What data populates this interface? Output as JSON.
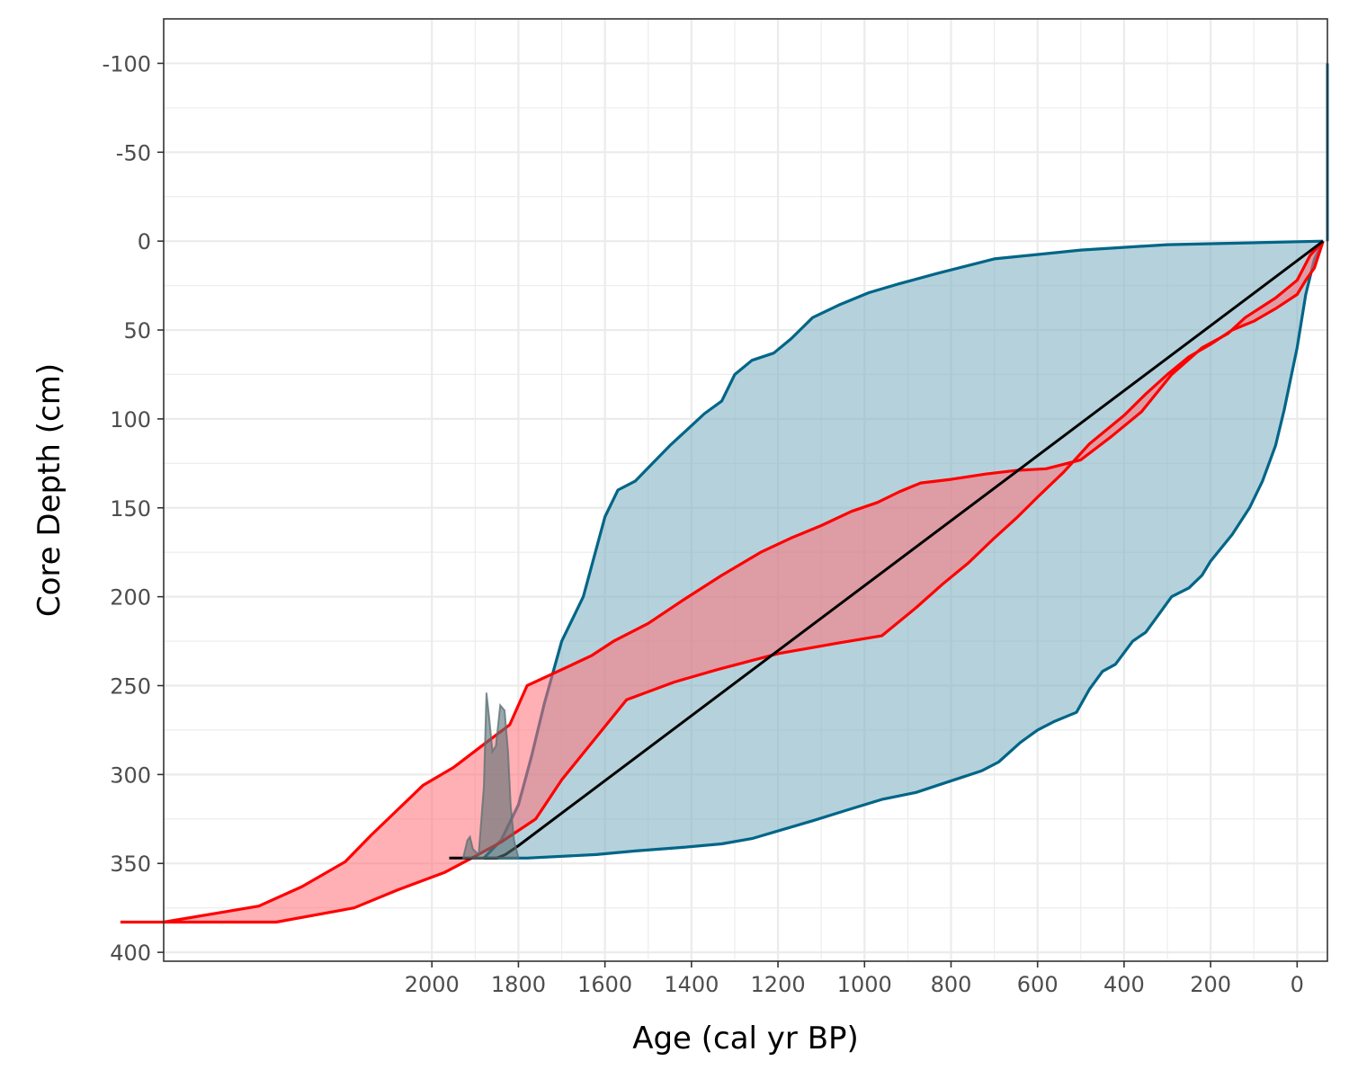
{
  "chart_data": {
    "type": "area",
    "xlabel": "Age (cal yr BP)",
    "ylabel": "Core Depth (cm)",
    "x_reversed": true,
    "y_reversed": true,
    "xlim": [
      2620,
      -70
    ],
    "ylim": [
      -125,
      405
    ],
    "x_ticks": [
      2000,
      1800,
      1600,
      1400,
      1200,
      1000,
      800,
      600,
      400,
      200,
      0
    ],
    "x_tick_labels": [
      "2000",
      "1800",
      "1600",
      "1400",
      "1200",
      "1000",
      "800",
      "600",
      "400",
      "200",
      "0"
    ],
    "y_ticks": [
      -100,
      -50,
      0,
      50,
      100,
      150,
      200,
      250,
      300,
      350,
      400
    ],
    "y_tick_labels": [
      "-100",
      "-50",
      "0",
      "50",
      "100",
      "150",
      "200",
      "250",
      "300",
      "350",
      "400"
    ],
    "grid": true,
    "legend": "none",
    "colors": {
      "blue_fill": "#7fb1c3",
      "blue_line": "#006587",
      "red_fill": "#ff6f78",
      "red_line": "#ff0000",
      "median_line": "#000000",
      "density_fill": "#5a6f73",
      "grid": "#ebebeb",
      "panel_border": "#333333"
    },
    "series": [
      {
        "kind": "envelope",
        "color": "blue",
        "young_edge": [
          [
            -60,
            0
          ],
          [
            -40,
            10
          ],
          [
            -20,
            30
          ],
          [
            0,
            60
          ],
          [
            30,
            95
          ],
          [
            50,
            115
          ],
          [
            80,
            135
          ],
          [
            110,
            150
          ],
          [
            150,
            165
          ],
          [
            200,
            180
          ],
          [
            220,
            188
          ],
          [
            250,
            195
          ],
          [
            290,
            200
          ],
          [
            320,
            210
          ],
          [
            350,
            220
          ],
          [
            380,
            225
          ],
          [
            420,
            238
          ],
          [
            450,
            242
          ],
          [
            480,
            252
          ],
          [
            510,
            265
          ],
          [
            560,
            270
          ],
          [
            600,
            275
          ],
          [
            640,
            282
          ],
          [
            690,
            293
          ],
          [
            730,
            298
          ],
          [
            780,
            302
          ],
          [
            830,
            306
          ],
          [
            880,
            310
          ],
          [
            960,
            314
          ],
          [
            1040,
            320
          ],
          [
            1120,
            326
          ],
          [
            1190,
            331
          ],
          [
            1260,
            336
          ],
          [
            1330,
            339
          ],
          [
            1420,
            341
          ],
          [
            1530,
            343
          ],
          [
            1620,
            345
          ],
          [
            1780,
            347
          ],
          [
            1880,
            347
          ]
        ],
        "old_edge": [
          [
            -60,
            0
          ],
          [
            300,
            2
          ],
          [
            500,
            5
          ],
          [
            700,
            10
          ],
          [
            830,
            18
          ],
          [
            920,
            24
          ],
          [
            990,
            29
          ],
          [
            1060,
            36
          ],
          [
            1120,
            43
          ],
          [
            1170,
            55
          ],
          [
            1210,
            63
          ],
          [
            1260,
            67
          ],
          [
            1300,
            75
          ],
          [
            1330,
            90
          ],
          [
            1370,
            97
          ],
          [
            1410,
            106
          ],
          [
            1450,
            115
          ],
          [
            1490,
            125
          ],
          [
            1530,
            135
          ],
          [
            1570,
            140
          ],
          [
            1600,
            155
          ],
          [
            1650,
            200
          ],
          [
            1700,
            225
          ],
          [
            1740,
            260
          ],
          [
            1770,
            290
          ],
          [
            1800,
            317
          ],
          [
            1840,
            337
          ],
          [
            1880,
            347
          ]
        ]
      },
      {
        "kind": "envelope",
        "color": "red",
        "young_edge": [
          [
            -60,
            0
          ],
          [
            -40,
            15
          ],
          [
            -20,
            22
          ],
          [
            0,
            30
          ],
          [
            50,
            38
          ],
          [
            100,
            45
          ],
          [
            150,
            50
          ],
          [
            200,
            58
          ],
          [
            250,
            65
          ],
          [
            300,
            75
          ],
          [
            350,
            86
          ],
          [
            400,
            98
          ],
          [
            480,
            114
          ],
          [
            540,
            130
          ],
          [
            600,
            144
          ],
          [
            650,
            156
          ],
          [
            700,
            167
          ],
          [
            760,
            181
          ],
          [
            820,
            193
          ],
          [
            880,
            206
          ],
          [
            960,
            222
          ],
          [
            1060,
            226
          ],
          [
            1200,
            232
          ],
          [
            1340,
            241
          ],
          [
            1440,
            248
          ],
          [
            1550,
            258
          ],
          [
            1650,
            288
          ],
          [
            1700,
            303
          ],
          [
            1760,
            325
          ],
          [
            1840,
            338
          ],
          [
            1900,
            346
          ],
          [
            1970,
            355
          ],
          [
            2080,
            365
          ],
          [
            2180,
            375
          ],
          [
            2360,
            383
          ],
          [
            2720,
            383
          ]
        ],
        "old_edge": [
          [
            -60,
            0
          ],
          [
            -30,
            8
          ],
          [
            0,
            22
          ],
          [
            50,
            32
          ],
          [
            120,
            43
          ],
          [
            160,
            52
          ],
          [
            220,
            60
          ],
          [
            290,
            75
          ],
          [
            360,
            96
          ],
          [
            430,
            110
          ],
          [
            500,
            123
          ],
          [
            580,
            128
          ],
          [
            650,
            129
          ],
          [
            720,
            131
          ],
          [
            800,
            134
          ],
          [
            870,
            136
          ],
          [
            920,
            141
          ],
          [
            970,
            147
          ],
          [
            1030,
            152
          ],
          [
            1100,
            160
          ],
          [
            1170,
            167
          ],
          [
            1240,
            175
          ],
          [
            1330,
            188
          ],
          [
            1420,
            202
          ],
          [
            1500,
            215
          ],
          [
            1580,
            225
          ],
          [
            1630,
            233
          ],
          [
            1700,
            241
          ],
          [
            1780,
            250
          ],
          [
            1820,
            272
          ],
          [
            1880,
            283
          ],
          [
            1950,
            296
          ],
          [
            2020,
            306
          ],
          [
            2080,
            320
          ],
          [
            2140,
            334
          ],
          [
            2200,
            349
          ],
          [
            2300,
            363
          ],
          [
            2400,
            374
          ],
          [
            2620,
            383
          ]
        ]
      },
      {
        "kind": "line",
        "color": "black",
        "points": [
          [
            -60,
            0
          ],
          [
            1800,
            340
          ],
          [
            1830,
            345
          ],
          [
            1850,
            347
          ],
          [
            1960,
            347
          ]
        ]
      },
      {
        "kind": "line",
        "color": "blue",
        "points": [
          [
            -70,
            0
          ],
          [
            -70,
            -100
          ]
        ]
      },
      {
        "kind": "density",
        "color": "gray",
        "baseline_depth": 347,
        "profile": [
          [
            1928,
            0
          ],
          [
            1918,
            10
          ],
          [
            1912,
            12
          ],
          [
            1905,
            5
          ],
          [
            1892,
            2
          ],
          [
            1880,
            40
          ],
          [
            1874,
            93
          ],
          [
            1868,
            80
          ],
          [
            1860,
            60
          ],
          [
            1852,
            63
          ],
          [
            1842,
            86
          ],
          [
            1832,
            83
          ],
          [
            1824,
            60
          ],
          [
            1818,
            30
          ],
          [
            1810,
            10
          ],
          [
            1800,
            0
          ]
        ]
      }
    ]
  }
}
